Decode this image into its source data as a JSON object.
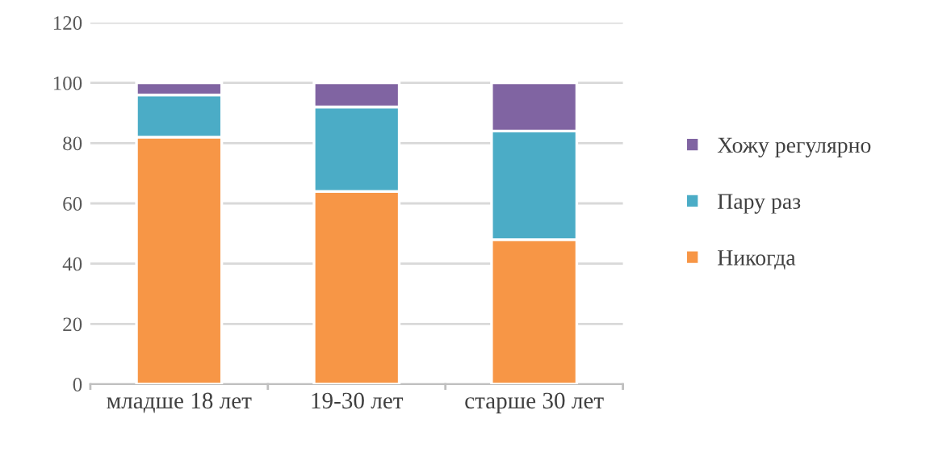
{
  "chart_data": {
    "type": "bar",
    "stacked": true,
    "categories": [
      "младше 18 лет",
      "19-30 лет",
      "старше 30 лет"
    ],
    "series": [
      {
        "name": "Никогда",
        "color": "#f79646",
        "values": [
          82,
          64,
          48
        ]
      },
      {
        "name": "Пару раз",
        "color": "#4bacc6",
        "values": [
          14,
          28,
          36
        ]
      },
      {
        "name": "Хожу регулярно",
        "color": "#8064a2",
        "values": [
          4,
          8,
          16
        ]
      }
    ],
    "ylim": [
      0,
      120
    ],
    "yticks": [
      0,
      20,
      40,
      60,
      80,
      100,
      120
    ],
    "grid": "y",
    "legend": "right"
  }
}
